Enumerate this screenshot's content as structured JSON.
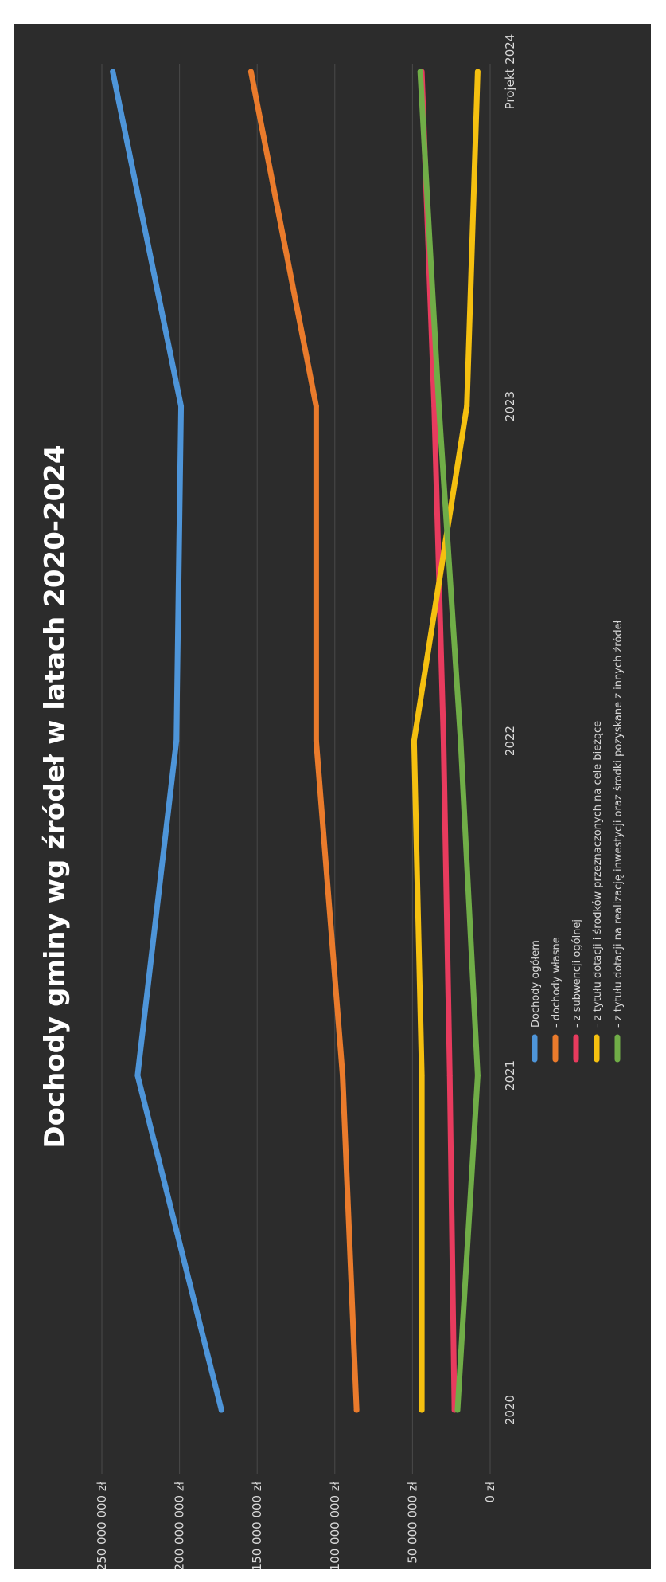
{
  "chart_data": {
    "type": "line",
    "title": "Dochody gminy wg źródeł w latach 2020-2024",
    "categories": [
      "2020",
      "2021",
      "2022",
      "2023",
      "Projekt 2024"
    ],
    "y_ticks": [
      "0 zł",
      "50 000 000 zł",
      "100 000 000 zł",
      "150 000 000 zł",
      "200 000 000 zł",
      "250 000 000 zł"
    ],
    "ylim": [
      0,
      250000000
    ],
    "grid": true,
    "legend_position": "bottom",
    "series": [
      {
        "name": "Dochody ogółem",
        "color": "#4e95d9",
        "values": [
          173000000,
          227000000,
          202000000,
          199000000,
          243000000
        ]
      },
      {
        "name": "- dochody własne",
        "color": "#ea7b2c",
        "values": [
          86000000,
          95000000,
          112000000,
          112000000,
          154000000
        ]
      },
      {
        "name": "- z subwencji ogólnej",
        "color": "#e83b5e",
        "values": [
          23000000,
          26000000,
          30000000,
          36000000,
          44000000
        ]
      },
      {
        "name": "- z tytułu dotacji i środków przeznaczonych na cele bieżące",
        "color": "#f5c010",
        "values": [
          44000000,
          44000000,
          49000000,
          15000000,
          8000000
        ]
      },
      {
        "name": "- z tytułu dotacji na realizację inwestycji oraz środki pozyskane z innych źródeł",
        "color": "#70ad47",
        "values": [
          21000000,
          8000000,
          19000000,
          33000000,
          45000000
        ]
      }
    ]
  }
}
